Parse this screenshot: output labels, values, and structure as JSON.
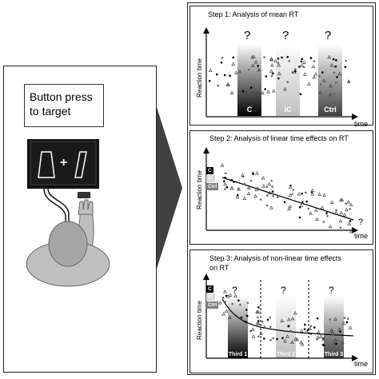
{
  "left": {
    "task_label": "Button press to target",
    "screen_symbol": "+"
  },
  "step1": {
    "title": "Step 1: Analysis of mean RT",
    "ylabel": "Reaction time",
    "xlabel": "time",
    "bars": [
      "C",
      "IC",
      "Ctrl"
    ],
    "question": "?"
  },
  "step2": {
    "title": "Step 2: Analysis of linear time effects on RT",
    "ylabel": "Reaction time",
    "xlabel": "time",
    "legend": [
      "C",
      "IC",
      "Ctrl"
    ],
    "question": "?"
  },
  "step3": {
    "title_line1": "Step 3: Analysis of non-linear time effects",
    "title_line2": "on RT",
    "ylabel": "Reaction time",
    "xlabel": "time",
    "legend": [
      "C",
      "IC",
      "Ctrl"
    ],
    "thirds": [
      "Third 1",
      "Third 2",
      "Third 3"
    ],
    "question": "?"
  },
  "colors": {
    "c": "#000000",
    "ic": "#d9d9d9",
    "ctrl": "#7f7f7f",
    "arrow": "#404040"
  }
}
